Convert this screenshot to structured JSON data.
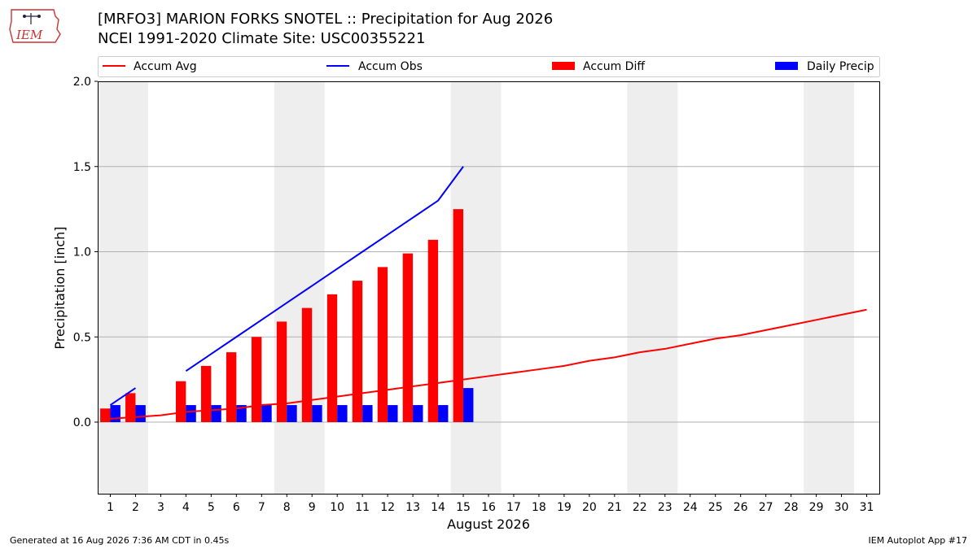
{
  "header": {
    "title_line1": "[MRFO3] MARION FORKS SNOTEL :: Precipitation for Aug 2026",
    "title_line2": "NCEI 1991-2020 Climate Site: USC00355221",
    "logo_text": "IEM"
  },
  "footer": {
    "generated": "Generated at 16 Aug 2026 7:36 AM CDT in 0.45s",
    "app": "IEM Autoplot App #17"
  },
  "colors": {
    "accum_avg": "#ff0000",
    "accum_obs": "#0000ff",
    "accum_diff": "#ff0000",
    "daily_precip": "#0000ff",
    "weekend_band": "#eeeeee",
    "grid": "#b0b0b0"
  },
  "chart_data": {
    "type": "bar",
    "xlabel": "August 2026",
    "ylabel": "Precipitation [inch]",
    "xlim": [
      0.5,
      31.5
    ],
    "ylim": [
      -0.42,
      2.0
    ],
    "yticks": [
      0.0,
      0.5,
      1.0,
      1.5,
      2.0
    ],
    "ytick_labels": [
      "0.0",
      "0.5",
      "1.0",
      "1.5",
      "2.0"
    ],
    "days": [
      1,
      2,
      3,
      4,
      5,
      6,
      7,
      8,
      9,
      10,
      11,
      12,
      13,
      14,
      15,
      16,
      17,
      18,
      19,
      20,
      21,
      22,
      23,
      24,
      25,
      26,
      27,
      28,
      29,
      30,
      31
    ],
    "weekend_bands": [
      [
        1,
        2
      ],
      [
        8,
        9
      ],
      [
        15,
        16
      ],
      [
        22,
        23
      ],
      [
        29,
        30
      ]
    ],
    "grid": "horizontal",
    "legend_placement": "top",
    "legend": [
      "Accum Avg",
      "Accum Obs",
      "Accum Diff",
      "Daily Precip"
    ],
    "series": [
      {
        "name": "Accum Avg",
        "kind": "line",
        "color": "#ff0000",
        "x": [
          1,
          2,
          3,
          4,
          5,
          6,
          7,
          8,
          9,
          10,
          11,
          12,
          13,
          14,
          15,
          16,
          17,
          18,
          19,
          20,
          21,
          22,
          23,
          24,
          25,
          26,
          27,
          28,
          29,
          30,
          31
        ],
        "values": [
          0.02,
          0.03,
          0.04,
          0.06,
          0.07,
          0.08,
          0.1,
          0.11,
          0.13,
          0.15,
          0.17,
          0.19,
          0.21,
          0.23,
          0.25,
          0.27,
          0.29,
          0.31,
          0.33,
          0.36,
          0.38,
          0.41,
          0.43,
          0.46,
          0.49,
          0.51,
          0.54,
          0.57,
          0.6,
          0.63,
          0.66
        ]
      },
      {
        "name": "Accum Obs",
        "kind": "line",
        "color": "#0000ff",
        "segments": [
          {
            "x": [
              1,
              2
            ],
            "values": [
              0.1,
              0.2
            ]
          },
          {
            "x": [
              4,
              5,
              6,
              7,
              8,
              9,
              10,
              11,
              12,
              13,
              14,
              15
            ],
            "values": [
              0.3,
              0.4,
              0.5,
              0.6,
              0.7,
              0.8,
              0.9,
              1.0,
              1.1,
              1.2,
              1.3,
              1.5
            ]
          }
        ]
      },
      {
        "name": "Accum Diff",
        "kind": "bar",
        "color": "#ff0000",
        "x": [
          1,
          2,
          4,
          5,
          6,
          7,
          8,
          9,
          10,
          11,
          12,
          13,
          14,
          15
        ],
        "values": [
          0.08,
          0.17,
          0.24,
          0.33,
          0.41,
          0.5,
          0.59,
          0.67,
          0.75,
          0.83,
          0.91,
          0.99,
          1.07,
          1.25
        ]
      },
      {
        "name": "Daily Precip",
        "kind": "bar",
        "color": "#0000ff",
        "x": [
          1,
          2,
          4,
          5,
          6,
          7,
          8,
          9,
          10,
          11,
          12,
          13,
          14,
          15
        ],
        "values": [
          0.1,
          0.1,
          0.1,
          0.1,
          0.1,
          0.1,
          0.1,
          0.1,
          0.1,
          0.1,
          0.1,
          0.1,
          0.1,
          0.2
        ]
      }
    ]
  }
}
